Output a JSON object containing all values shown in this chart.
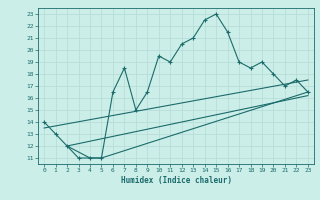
{
  "xlabel": "Humidex (Indice chaleur)",
  "bg_color": "#cceee8",
  "line_color": "#1a6b6b",
  "grid_color": "#b8ddd8",
  "xlim": [
    -0.5,
    23.5
  ],
  "ylim": [
    10.5,
    23.5
  ],
  "yticks": [
    11,
    12,
    13,
    14,
    15,
    16,
    17,
    18,
    19,
    20,
    21,
    22,
    23
  ],
  "xticks": [
    0,
    1,
    2,
    3,
    4,
    5,
    6,
    7,
    8,
    9,
    10,
    11,
    12,
    13,
    14,
    15,
    16,
    17,
    18,
    19,
    20,
    21,
    22,
    23
  ],
  "line1_x": [
    0,
    1,
    2,
    3,
    4,
    5,
    6,
    7,
    8,
    9,
    10,
    11,
    12,
    13,
    14,
    15,
    16,
    17,
    18,
    19,
    20,
    21,
    22,
    23
  ],
  "line1_y": [
    14,
    13,
    12,
    11,
    11,
    11,
    16.5,
    18.5,
    15,
    16.5,
    19.5,
    19,
    20.5,
    21,
    22.5,
    23,
    21.5,
    19,
    18.5,
    19,
    18,
    17,
    17.5,
    16.5
  ],
  "line2_x": [
    2,
    3,
    4,
    5,
    23
  ],
  "line2_y": [
    12,
    11.5,
    11,
    11,
    16.5
  ],
  "line3_x": [
    0,
    23
  ],
  "line3_y": [
    13.5,
    17.5
  ],
  "line4_x": [
    2,
    23
  ],
  "line4_y": [
    12,
    16.2
  ]
}
